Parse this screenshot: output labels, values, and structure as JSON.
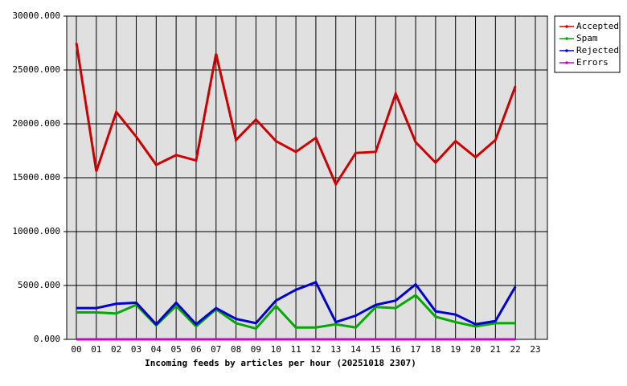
{
  "chart_data": {
    "type": "line",
    "x_label": "Incoming feeds by articles per hour (20251018 2307)",
    "categories": [
      "00",
      "01",
      "02",
      "03",
      "04",
      "05",
      "06",
      "07",
      "08",
      "09",
      "10",
      "11",
      "12",
      "13",
      "14",
      "15",
      "16",
      "17",
      "18",
      "19",
      "20",
      "21",
      "22",
      "23"
    ],
    "series": [
      {
        "name": "Accepted",
        "color": "#cc0000",
        "values": [
          27500,
          15600,
          21100,
          18800,
          16200,
          17100,
          16600,
          26500,
          18500,
          20400,
          18400,
          17400,
          18700,
          14400,
          17300,
          17400,
          22800,
          18300,
          16400,
          18400,
          16900,
          18500,
          23500,
          null
        ]
      },
      {
        "name": "Spam",
        "color": "#00aa00",
        "values": [
          2500,
          2500,
          2400,
          3200,
          1300,
          3100,
          1200,
          2800,
          1500,
          1000,
          3100,
          1100,
          1100,
          1400,
          1100,
          3000,
          2900,
          4100,
          2100,
          1600,
          1200,
          1500,
          1500,
          null
        ]
      },
      {
        "name": "Rejected",
        "color": "#0000cc",
        "values": [
          2900,
          2900,
          3300,
          3400,
          1400,
          3400,
          1400,
          2900,
          1900,
          1500,
          3600,
          4600,
          5300,
          1600,
          2200,
          3200,
          3600,
          5100,
          2600,
          2300,
          1400,
          1700,
          4900,
          null
        ]
      },
      {
        "name": "Errors",
        "color": "#cc00cc",
        "values": [
          0,
          0,
          0,
          0,
          0,
          0,
          0,
          0,
          0,
          0,
          0,
          0,
          0,
          0,
          0,
          0,
          0,
          0,
          0,
          0,
          0,
          0,
          0,
          null
        ]
      }
    ],
    "ylim": [
      0,
      30000
    ],
    "yticks": [
      {
        "value": 0,
        "label": "0.000"
      },
      {
        "value": 5000,
        "label": "5000.000"
      },
      {
        "value": 10000,
        "label": "10000.000"
      },
      {
        "value": 15000,
        "label": "15000.000"
      },
      {
        "value": 20000,
        "label": "20000.000"
      },
      {
        "value": 25000,
        "label": "25000.000"
      },
      {
        "value": 30000,
        "label": "30000.000"
      }
    ],
    "grid": true,
    "legend": "right"
  }
}
